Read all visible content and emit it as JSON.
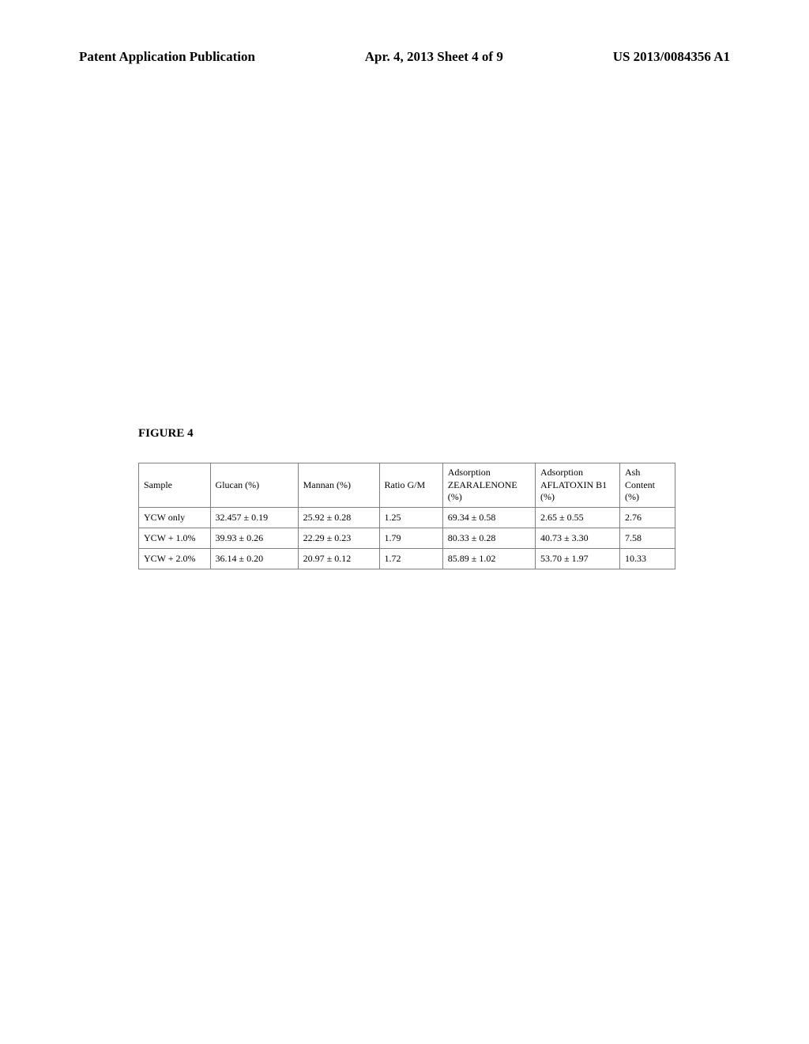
{
  "header": {
    "left": "Patent Application Publication",
    "center": "Apr. 4, 2013  Sheet 4 of 9",
    "right": "US 2013/0084356 A1"
  },
  "figure_label": "FIGURE 4",
  "table": {
    "columns": [
      "Sample",
      "Glucan (%)",
      "Mannan (%)",
      "Ratio G/M",
      "Adsorption ZEARALENONE (%)",
      "Adsorption AFLATOXIN B1 (%)",
      "Ash Content (%)"
    ],
    "rows": [
      [
        "YCW only",
        "32.457 ± 0.19",
        "25.92 ± 0.28",
        "1.25",
        "69.34 ± 0.58",
        "2.65 ± 0.55",
        "2.76"
      ],
      [
        "YCW + 1.0%",
        "39.93 ± 0.26",
        "22.29 ± 0.23",
        "1.79",
        "80.33 ± 0.28",
        "40.73 ± 3.30",
        "7.58"
      ],
      [
        "YCW + 2.0%",
        "36.14 ± 0.20",
        "20.97 ± 0.12",
        "1.72",
        "85.89 ± 1.02",
        "53.70 ± 1.97",
        "10.33"
      ]
    ],
    "border_color": "#808080",
    "background_color": "#ffffff",
    "text_color": "#000000",
    "header_fontsize": 12,
    "cell_fontsize": 12
  }
}
